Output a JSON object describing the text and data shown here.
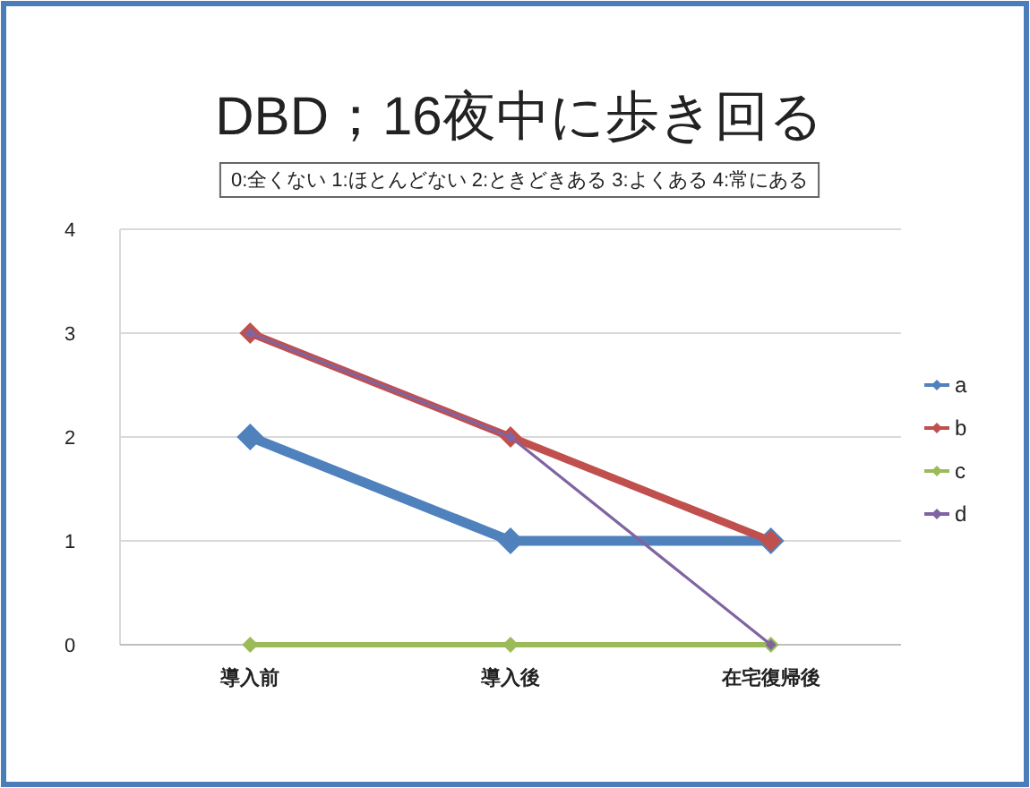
{
  "chart_data": {
    "type": "line",
    "title": "DBD；16夜中に歩き回る",
    "subtitle": "0:全くない  1:ほとんどない  2:ときどきある  3:よくある  4:常にある",
    "categories": [
      "導入前",
      "導入後",
      "在宅復帰後"
    ],
    "series": [
      {
        "name": "a",
        "color": "#4f81bd",
        "values": [
          2,
          1,
          1
        ]
      },
      {
        "name": "b",
        "color": "#c0504d",
        "values": [
          3,
          2,
          1
        ]
      },
      {
        "name": "c",
        "color": "#9bbb59",
        "values": [
          0,
          0,
          0
        ]
      },
      {
        "name": "d",
        "color": "#8064a2",
        "values": [
          3,
          2,
          0
        ]
      }
    ],
    "ylim": [
      0,
      4
    ],
    "yticks": [
      0,
      1,
      2,
      3,
      4
    ],
    "grid": "y",
    "legend": "right",
    "marker": "diamond"
  }
}
